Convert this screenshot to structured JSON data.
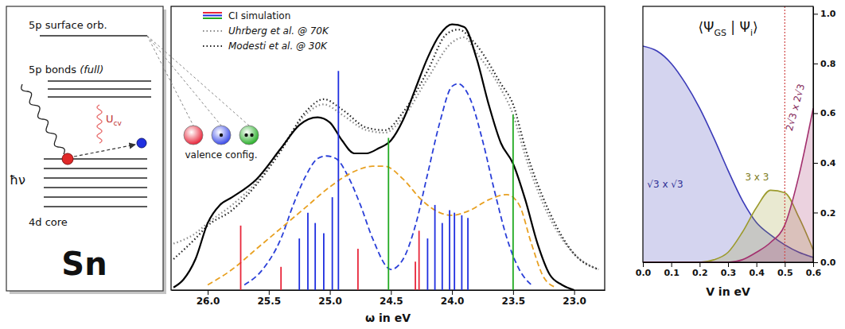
{
  "diagram": {
    "element": "Sn",
    "levels": [
      {
        "label": "5p surface orb."
      },
      {
        "label": "5p bonds",
        "note": "(full)"
      },
      {
        "label": "4d core"
      }
    ],
    "photon": "ħν",
    "interaction": {
      "symbol": "U",
      "subscript": "cv"
    },
    "valence_config_label": "valence config."
  },
  "chart_data": [
    {
      "type": "line",
      "xlabel": "ω in eV",
      "xlim": [
        26.3,
        22.75
      ],
      "xticks": [
        {
          "value": 26,
          "label": "26.0"
        },
        25.5,
        {
          "value": 25,
          "label": "25.0"
        },
        24.5,
        {
          "value": 24,
          "label": "24.0"
        },
        23.5,
        {
          "value": 23,
          "label": "23.0"
        }
      ],
      "ylim": [
        0,
        1.1
      ],
      "tick_labels": "x",
      "legend": "upper left",
      "series": [
        {
          "name": "CI simulation",
          "type": "stem",
          "x": [
            25.73,
            25.4,
            24.77,
            24.3,
            24.27,
            25.25,
            25.18,
            25.12,
            25.05,
            24.98,
            24.93,
            24.2,
            24.14,
            24.08,
            24.02,
            23.98,
            23.92,
            23.87,
            24.52,
            23.5
          ],
          "values": [
            0.25,
            0.09,
            0.16,
            0.11,
            0.23,
            0.2,
            0.3,
            0.26,
            0.22,
            0.36,
            0.85,
            0.2,
            0.33,
            0.26,
            0.31,
            0.3,
            0.29,
            0.28,
            0.59,
            0.68
          ],
          "colors": [
            "#e8253a",
            "#e8253a",
            "#e8253a",
            "#e8253a",
            "#e8253a",
            "#1f2fe0",
            "#1f2fe0",
            "#1f2fe0",
            "#1f2fe0",
            "#1f2fe0",
            "#1f2fe0",
            "#1f2fe0",
            "#1f2fe0",
            "#1f2fe0",
            "#1f2fe0",
            "#1f2fe0",
            "#1f2fe0",
            "#1f2fe0",
            "#22aa22",
            "#22aa22"
          ]
        },
        {
          "type": "line",
          "color": "#000000",
          "line_style": "solid",
          "x": [
            26.28,
            26.2,
            26.1,
            26.0,
            25.9,
            25.8,
            25.6,
            25.4,
            25.25,
            25.1,
            25.0,
            24.9,
            24.8,
            24.7,
            24.6,
            24.5,
            24.4,
            24.3,
            24.2,
            24.1,
            24.0,
            23.9,
            23.8,
            23.7,
            23.6,
            23.5,
            23.4,
            23.3,
            23.2,
            23.1,
            23.0
          ],
          "values": [
            0.01,
            0.04,
            0.12,
            0.26,
            0.33,
            0.36,
            0.43,
            0.55,
            0.64,
            0.67,
            0.65,
            0.58,
            0.53,
            0.53,
            0.55,
            0.58,
            0.66,
            0.78,
            0.9,
            0.99,
            1.03,
            1.02,
            0.9,
            0.72,
            0.57,
            0.49,
            0.35,
            0.18,
            0.06,
            0.02,
            0.0
          ]
        },
        {
          "type": "line",
          "color": "#2a3fd8",
          "line_style": "dashed",
          "x": [
            25.7,
            25.55,
            25.4,
            25.3,
            25.2,
            25.1,
            25.03,
            24.95,
            24.85,
            24.75,
            24.65,
            24.5,
            24.4,
            24.3,
            24.2,
            24.1,
            24.0,
            23.95,
            23.85,
            23.75,
            23.65,
            23.55,
            23.45,
            23.35
          ],
          "values": [
            0.02,
            0.08,
            0.2,
            0.33,
            0.44,
            0.51,
            0.52,
            0.51,
            0.44,
            0.33,
            0.2,
            0.08,
            0.12,
            0.25,
            0.45,
            0.65,
            0.79,
            0.8,
            0.74,
            0.58,
            0.38,
            0.2,
            0.08,
            0.02
          ]
        },
        {
          "type": "line",
          "color": "#e8a020",
          "line_style": "dashed",
          "x": [
            26.0,
            25.8,
            25.6,
            25.4,
            25.2,
            25.0,
            24.8,
            24.65,
            24.55,
            24.4,
            24.25,
            24.1,
            24.0,
            23.85,
            23.7,
            23.55,
            23.45,
            23.35,
            23.25,
            23.15
          ],
          "values": [
            0.02,
            0.08,
            0.16,
            0.24,
            0.32,
            0.4,
            0.46,
            0.48,
            0.48,
            0.43,
            0.35,
            0.3,
            0.29,
            0.31,
            0.35,
            0.37,
            0.33,
            0.18,
            0.05,
            0.01
          ]
        },
        {
          "name": "Uhrberg et al. @ 70K",
          "type": "line",
          "color": "#8a8a8a",
          "line_style": "dotted",
          "x": [
            26.28,
            26.1,
            26.0,
            25.8,
            25.6,
            25.4,
            25.2,
            25.05,
            24.9,
            24.7,
            24.55,
            24.4,
            24.2,
            24.0,
            23.9,
            23.8,
            23.6,
            23.5,
            23.4,
            23.2,
            23.0,
            22.8
          ],
          "values": [
            0.18,
            0.22,
            0.26,
            0.33,
            0.42,
            0.55,
            0.68,
            0.72,
            0.68,
            0.62,
            0.61,
            0.67,
            0.82,
            0.96,
            0.98,
            0.92,
            0.78,
            0.68,
            0.52,
            0.28,
            0.14,
            0.08
          ]
        },
        {
          "name": "Modesti et al. @ 30K",
          "type": "line",
          "color": "#222222",
          "line_style": "dotted",
          "x": [
            26.28,
            26.1,
            26.0,
            25.8,
            25.6,
            25.4,
            25.2,
            25.05,
            24.9,
            24.7,
            24.55,
            24.4,
            24.2,
            24.05,
            23.95,
            23.8,
            23.6,
            23.5,
            23.4,
            23.2,
            23.0,
            22.8
          ],
          "values": [
            0.12,
            0.2,
            0.25,
            0.31,
            0.41,
            0.54,
            0.69,
            0.74,
            0.7,
            0.63,
            0.62,
            0.69,
            0.85,
            0.99,
            1.01,
            0.95,
            0.8,
            0.72,
            0.55,
            0.3,
            0.14,
            0.08
          ]
        }
      ]
    },
    {
      "type": "area",
      "title_parts": [
        {
          "text": "⟨Ψ"
        },
        {
          "text": "GS",
          "sub": true
        },
        {
          "text": " | Ψ"
        },
        {
          "text": "i",
          "sub": true
        },
        {
          "text": "⟩"
        }
      ],
      "xlabel": "V in eV",
      "x": [
        0,
        0.05,
        0.1,
        0.15,
        0.2,
        0.25,
        0.3,
        0.35,
        0.4,
        0.45,
        0.5,
        0.55,
        0.6
      ],
      "xlim": [
        0,
        0.6
      ],
      "xticks": [
        {
          "value": 0,
          "label": "0.0"
        },
        0.1,
        0.2,
        0.3,
        0.4,
        0.5,
        0.6
      ],
      "ylim": [
        0,
        1.03
      ],
      "yticks": [
        {
          "value": 0,
          "label": "0.0"
        },
        0.2,
        0.4,
        0.6,
        0.8,
        {
          "value": 1,
          "label": "1.0"
        }
      ],
      "reference_x": 0.5,
      "series": [
        {
          "name": "√3 x √3",
          "color": "#3a3ab8",
          "values": [
            0.87,
            0.85,
            0.8,
            0.72,
            0.62,
            0.5,
            0.37,
            0.25,
            0.16,
            0.11,
            0.07,
            0.04,
            0.02
          ]
        },
        {
          "name": "3 x 3",
          "color": "#9c9a2c",
          "values": [
            0,
            0,
            0,
            0,
            0,
            0.01,
            0.04,
            0.12,
            0.22,
            0.29,
            0.28,
            0.18,
            0.05
          ]
        },
        {
          "name": "2√3 x 2√3",
          "color": "#a3306e",
          "values": [
            0,
            0,
            0,
            0,
            0,
            0,
            0,
            0.01,
            0.04,
            0.08,
            0.15,
            0.35,
            0.62
          ]
        }
      ]
    }
  ]
}
